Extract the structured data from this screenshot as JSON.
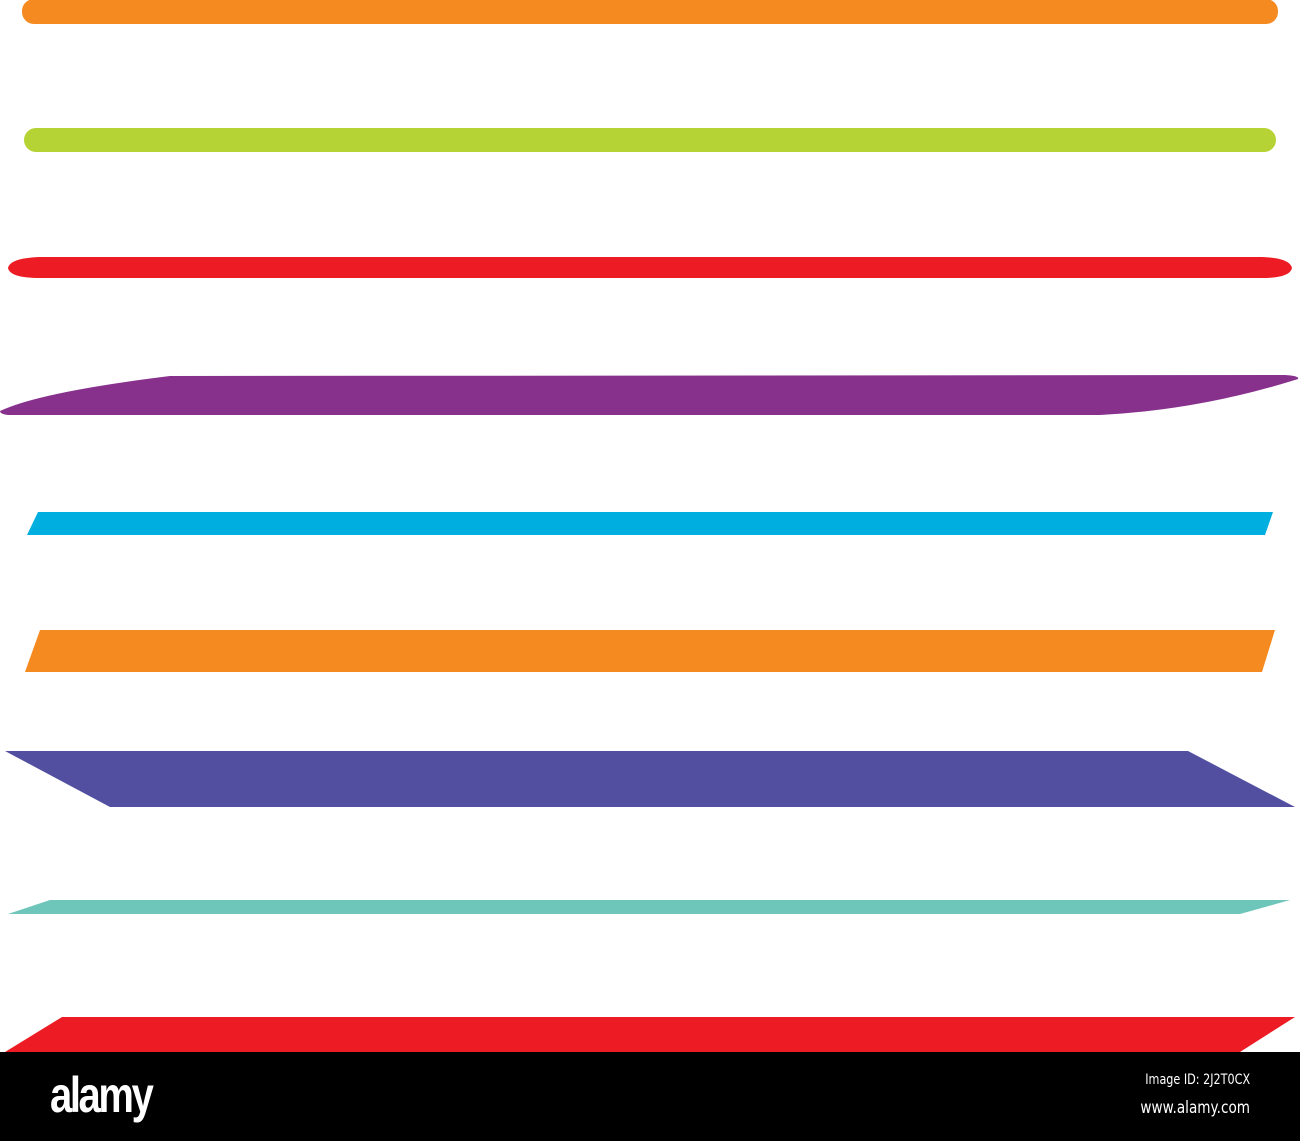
{
  "strokes": [
    {
      "name": "orange-rounded",
      "color": "#F58B20"
    },
    {
      "name": "green-rounded",
      "color": "#B5D334"
    },
    {
      "name": "red-pointed",
      "color": "#ED1C24"
    },
    {
      "name": "purple-brush",
      "color": "#87318D"
    },
    {
      "name": "blue-slanted",
      "color": "#00AEDF"
    },
    {
      "name": "orange-slanted",
      "color": "#F58B20"
    },
    {
      "name": "indigo-slanted",
      "color": "#524FA1"
    },
    {
      "name": "teal-tapered",
      "color": "#6EC6BA"
    },
    {
      "name": "red-slanted",
      "color": "#ED1C24"
    }
  ],
  "footer": {
    "logo": "alamy",
    "image_id": "Image ID: 2J2T0CX",
    "url": "www.alamy.com"
  }
}
